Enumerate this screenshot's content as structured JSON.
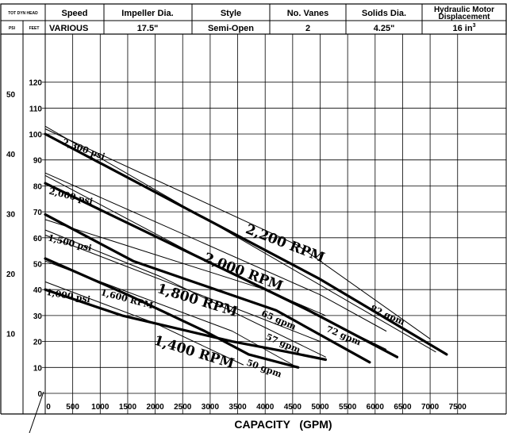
{
  "header": {
    "col1_top": "TOT DYN HEAD",
    "psi_label": "PSI",
    "feet_label": "FEET",
    "columns": [
      {
        "label": "Speed",
        "value": "VARIOUS"
      },
      {
        "label": "Impeller Dia.",
        "value": "17.5\""
      },
      {
        "label": "Style",
        "value": "Semi-Open"
      },
      {
        "label": "No. Vanes",
        "value": "2"
      },
      {
        "label": "Solids Dia.",
        "value": "4.25\""
      },
      {
        "label": "Hydraulic Motor Displacement",
        "label_line1": "Hydraulic Motor",
        "label_line2": "Displacement",
        "value": "16 in",
        "value_sup": "3"
      }
    ]
  },
  "chart_data": {
    "type": "line",
    "xlabel": "CAPACITY   (GPM)",
    "xlim": [
      0,
      7800
    ],
    "ylim": [
      0,
      125
    ],
    "x_ticks": [
      0,
      500,
      1000,
      1500,
      2000,
      2500,
      3000,
      3500,
      4000,
      4500,
      5000,
      5500,
      6000,
      6500,
      7000,
      7500
    ],
    "y_ticks_feet": [
      0,
      10,
      20,
      30,
      40,
      50,
      60,
      70,
      80,
      90,
      100,
      110,
      120
    ],
    "y_ticks_psi": [
      10,
      20,
      30,
      40,
      50
    ],
    "grid": true,
    "series": [
      {
        "name": "2,200 RPM",
        "style": "thick",
        "x": [
          0,
          5000,
          7300
        ],
        "y": [
          100,
          44,
          15
        ]
      },
      {
        "name": "2,000 RPM",
        "style": "thick",
        "x": [
          0,
          4700,
          6400
        ],
        "y": [
          81,
          33,
          14
        ]
      },
      {
        "name": "1,800 RPM",
        "style": "thick",
        "x": [
          0,
          1600,
          4200,
          5900
        ],
        "y": [
          69,
          51,
          32,
          12
        ]
      },
      {
        "name": "1,400 RPM",
        "style": "thick",
        "x": [
          0,
          1500,
          2900,
          3700,
          4600
        ],
        "y": [
          52,
          38,
          24,
          15,
          10
        ]
      },
      {
        "name": "1,600 RPM",
        "style": "thick",
        "x": [
          0,
          1400,
          3400,
          4400,
          5100
        ],
        "y": [
          40,
          30,
          20,
          16,
          13
        ]
      },
      {
        "name": "2,300 psi",
        "style": "thin",
        "x": [
          0,
          4000,
          7100
        ],
        "y": [
          103,
          54,
          16
        ]
      },
      {
        "name": "2,000 psi",
        "style": "thin",
        "x": [
          0,
          3300,
          6200
        ],
        "y": [
          84,
          47,
          17
        ]
      },
      {
        "name": "1,500 psi",
        "style": "thin",
        "x": [
          0,
          2100,
          5100
        ],
        "y": [
          63,
          45,
          14
        ]
      },
      {
        "name": "1,000 psi",
        "style": "thin",
        "x": [
          0,
          2000,
          3600
        ],
        "y": [
          43,
          27,
          11
        ]
      },
      {
        "name": "82 gpm",
        "style": "thin",
        "x": [
          0,
          4600,
          7000
        ],
        "y": [
          102,
          57,
          21
        ]
      },
      {
        "name": "72 gpm",
        "style": "thin",
        "x": [
          0,
          5000,
          6200
        ],
        "y": [
          85,
          38,
          24
        ]
      },
      {
        "name": "65 gpm",
        "style": "thin",
        "x": [
          0,
          4000,
          5100
        ],
        "y": [
          67,
          40,
          30
        ]
      },
      {
        "name": "57 gpm",
        "style": "thin",
        "x": [
          0,
          3800,
          5000
        ],
        "y": [
          61,
          30,
          20
        ]
      },
      {
        "name": "50 gpm",
        "style": "thin",
        "x": [
          0,
          3400,
          4500
        ],
        "y": [
          51,
          24,
          11
        ]
      }
    ],
    "annotations": [
      {
        "text": "2,200 RPM",
        "x": 3630,
        "y": 62,
        "angle": 21,
        "size": 17
      },
      {
        "text": "2,000 RPM",
        "x": 2870,
        "y": 51,
        "angle": 21,
        "size": 17
      },
      {
        "text": "1,800 RPM",
        "x": 2020,
        "y": 39,
        "angle": 17,
        "size": 17
      },
      {
        "text": "1,400 RPM",
        "x": 1960,
        "y": 19,
        "angle": 17,
        "size": 17
      },
      {
        "text": "1,600 RPM",
        "x": 1000,
        "y": 38,
        "angle": 15,
        "size": 11
      },
      {
        "text": "2,300 psi",
        "x": 300,
        "y": 96,
        "angle": 20,
        "size": 11
      },
      {
        "text": "2,000 psi",
        "x": 60,
        "y": 77,
        "angle": 14,
        "size": 11
      },
      {
        "text": "1,500 psi",
        "x": 40,
        "y": 59,
        "angle": 14,
        "size": 11
      },
      {
        "text": "1,000 psi",
        "x": 10,
        "y": 38,
        "angle": 10,
        "size": 11
      },
      {
        "text": "82 gpm",
        "x": 5900,
        "y": 32,
        "angle": 24,
        "size": 11
      },
      {
        "text": "72 gpm",
        "x": 5100,
        "y": 24,
        "angle": 23,
        "size": 11
      },
      {
        "text": "65 gpm",
        "x": 3920,
        "y": 30,
        "angle": 23,
        "size": 11
      },
      {
        "text": "57 gpm",
        "x": 4000,
        "y": 21,
        "angle": 23,
        "size": 11
      },
      {
        "text": "50 gpm",
        "x": 3650,
        "y": 11,
        "angle": 20,
        "size": 11
      }
    ]
  }
}
